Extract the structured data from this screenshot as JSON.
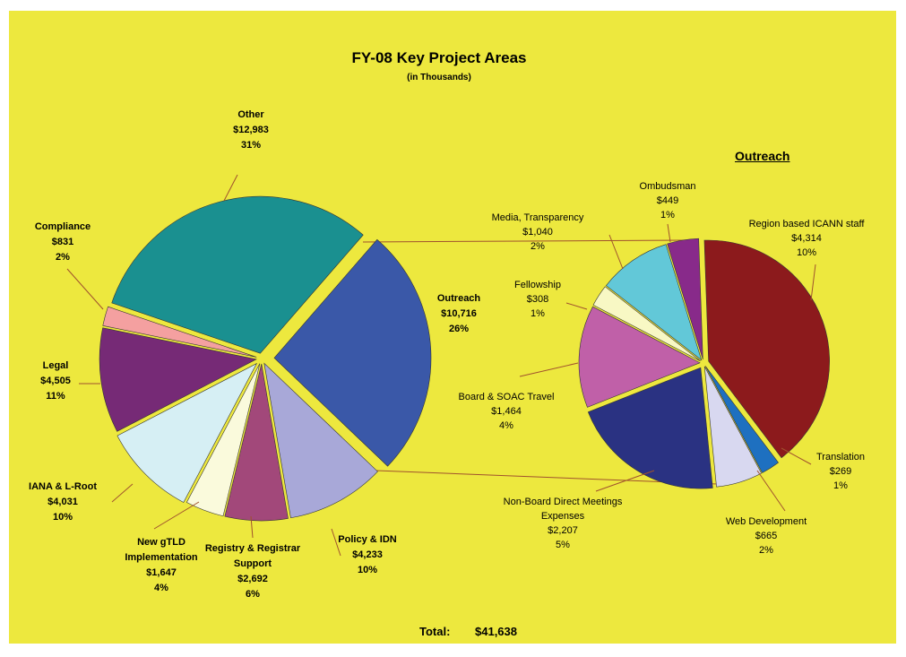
{
  "chart_data": [
    {
      "type": "pie",
      "title": "FY-08 Key Project Areas",
      "subtitle": "(in Thousands)",
      "categories": [
        "Outreach",
        "Policy & IDN",
        "Registry & Registrar Support",
        "New gTLD Implementation",
        "IANA & L-Root",
        "Legal",
        "Compliance",
        "Other"
      ],
      "values": [
        10716,
        4233,
        2692,
        1647,
        4031,
        4505,
        831,
        12983
      ],
      "value_labels": [
        "$10,716",
        "$4,233",
        "$2,692",
        "$1,647",
        "$4,031",
        "$4,505",
        "$831",
        "$12,983"
      ],
      "percent_labels": [
        "26%",
        "10%",
        "6%",
        "4%",
        "10%",
        "11%",
        "2%",
        "31%"
      ],
      "colors": [
        "#3a58a8",
        "#a8a8d8",
        "#a2487a",
        "#fafadc",
        "#d6eff4",
        "#762a76",
        "#f4a0a0",
        "#1a9090"
      ]
    },
    {
      "type": "pie",
      "title": "Outreach",
      "categories": [
        "Region based ICANN staff",
        "Translation",
        "Web Development",
        "Non-Board Direct Meetings Expenses",
        "Board & SOAC Travel",
        "Fellowship",
        "Media, Transparency",
        "Ombudsman"
      ],
      "values": [
        4314,
        269,
        665,
        2207,
        1464,
        308,
        1040,
        449
      ],
      "value_labels": [
        "$4,314",
        "$269",
        "$665",
        "$2,207",
        "$1,464",
        "$308",
        "$1,040",
        "$449"
      ],
      "percent_labels": [
        "10%",
        "1%",
        "2%",
        "5%",
        "4%",
        "1%",
        "2%",
        "1%"
      ],
      "colors": [
        "#8c1a1c",
        "#1e70c0",
        "#d8d8f0",
        "#2a3282",
        "#c060a8",
        "#f8f8c4",
        "#62c8d8",
        "#882a8a"
      ]
    }
  ],
  "total_label": "Total:",
  "total": {
    "value": 41638,
    "label": "$41,638"
  }
}
